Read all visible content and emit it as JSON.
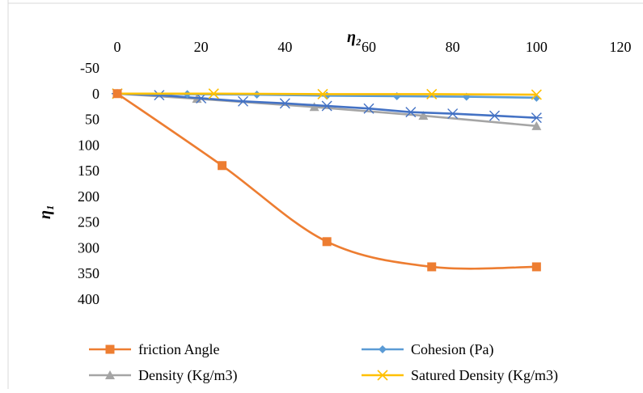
{
  "chart_data": {
    "type": "line",
    "xlabel": "η₂",
    "ylabel": "η₁",
    "xlim": [
      0,
      120
    ],
    "ylim": [
      -50,
      400
    ],
    "y_inverted": true,
    "x_axis_position": "top",
    "x_ticks": [
      "0",
      "20",
      "40",
      "60",
      "80",
      "100",
      "120"
    ],
    "y_ticks": [
      "-50",
      "0",
      "50",
      "100",
      "150",
      "200",
      "250",
      "300",
      "350",
      "400"
    ],
    "grid": false,
    "legend_position": "bottom",
    "series": [
      {
        "name": "friction Angle",
        "color": "#ED7D31",
        "marker": "square",
        "smooth": true,
        "x": [
          0,
          25,
          50,
          75,
          100
        ],
        "y": [
          0,
          140,
          288,
          337,
          337
        ]
      },
      {
        "name": "Cohesion (Pa)",
        "color": "#5B9BD5",
        "marker": "diamond",
        "smooth": false,
        "x": [
          0,
          16.7,
          33.3,
          50,
          66.7,
          83.3,
          100
        ],
        "y": [
          0,
          1,
          2,
          4,
          5,
          6,
          8
        ]
      },
      {
        "name": "Density (Kg/m3)",
        "color": "#A5A5A5",
        "marker": "triangle",
        "smooth": false,
        "x": [
          0,
          19,
          47,
          73,
          100
        ],
        "y": [
          0,
          10,
          26,
          43,
          63
        ]
      },
      {
        "name": "Satured Density (Kg/m3)",
        "color": "#FFC000",
        "marker": "x",
        "smooth": false,
        "x": [
          0,
          23,
          49,
          75,
          100
        ],
        "y": [
          0,
          0,
          1,
          1,
          2
        ]
      },
      {
        "name": "",
        "color": "#4472C4",
        "marker": "star",
        "smooth": false,
        "x": [
          0,
          10,
          20,
          30,
          40,
          50,
          60,
          70,
          80,
          90,
          100
        ],
        "y": [
          0,
          3,
          9,
          15,
          19,
          24,
          29,
          36,
          39,
          43,
          47
        ]
      }
    ]
  }
}
